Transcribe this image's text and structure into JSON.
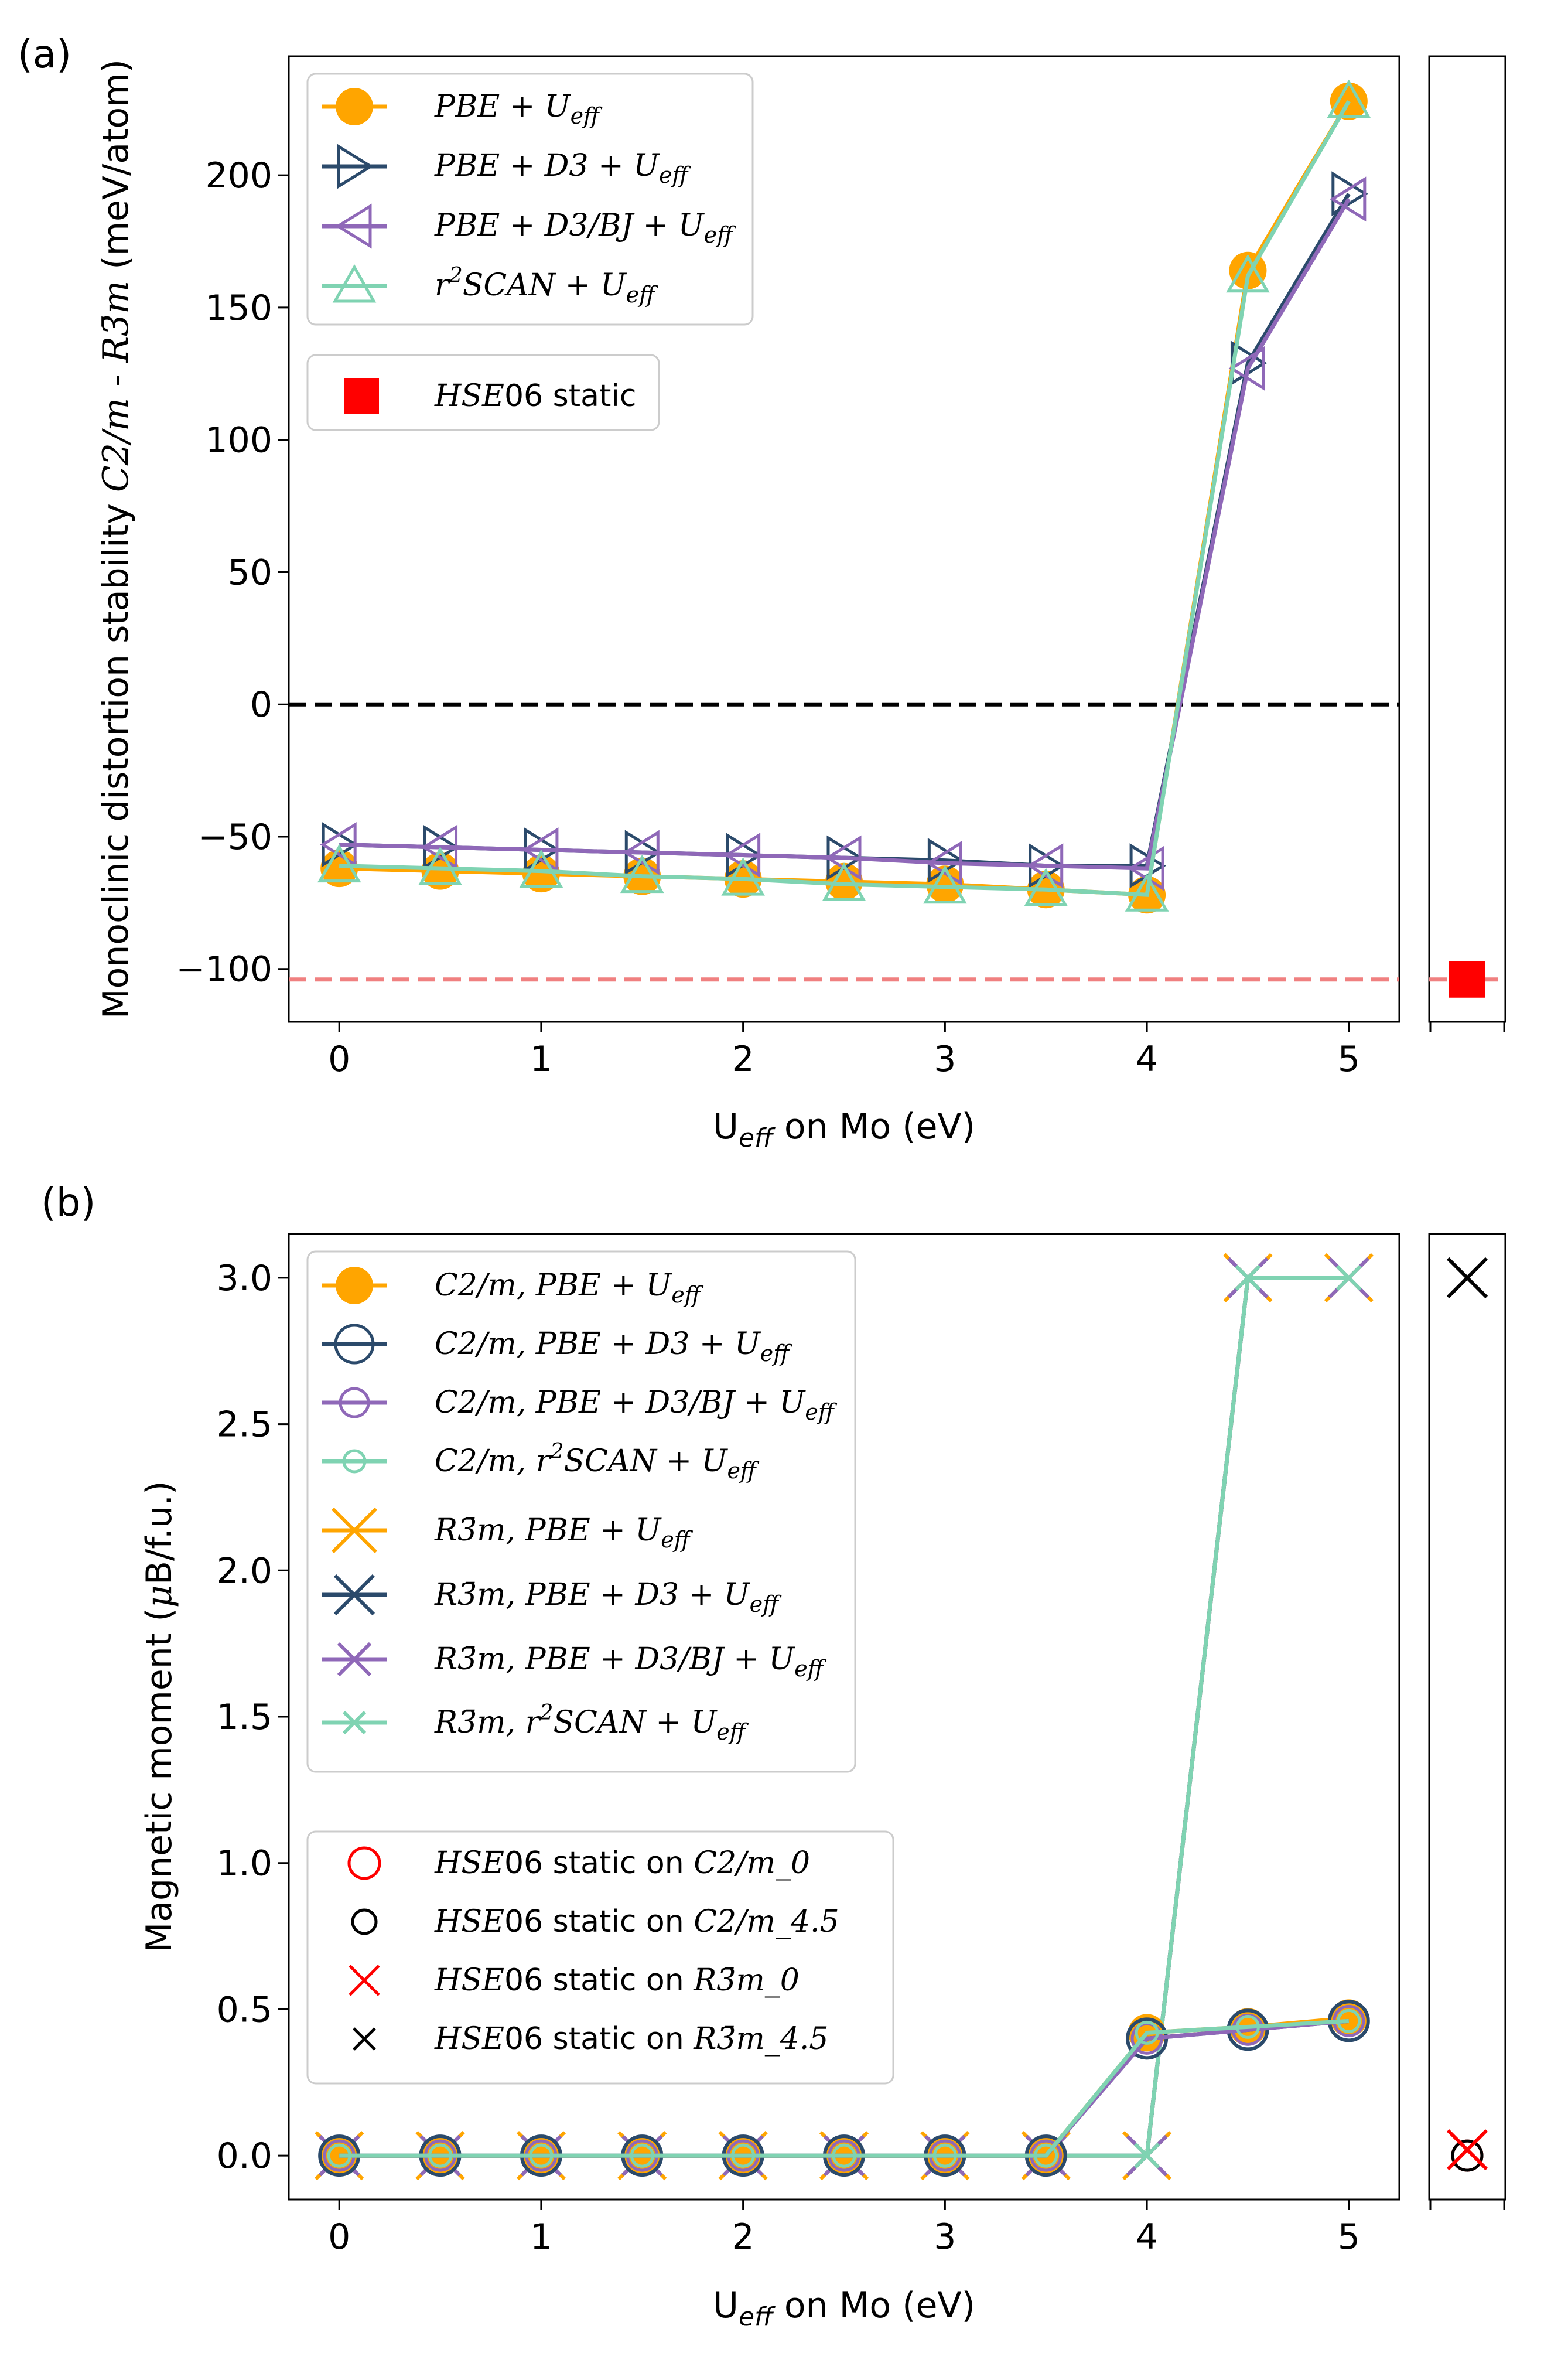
{
  "panel_labels": [
    "(a)",
    "(b)"
  ],
  "colors": {
    "PBE": "#ffa500",
    "PBE_D3": "#2b4a6b",
    "PBE_D3BJ": "#8f68b8",
    "r2SCAN": "#7fd3b2",
    "HSE_a": "#ff0000",
    "ref_a": "#f08080",
    "HSE_b_red": "#ff0000",
    "HSE_b_black": "#000000"
  },
  "chart_data": [
    {
      "type": "line",
      "panel": "(a)",
      "xlabel": "U_eff on Mo (eV)",
      "ylabel": "Monoclinic distortion stability C2/m - R3m (meV/atom)",
      "xlim": [
        -0.25,
        5.25
      ],
      "ylim": [
        -120,
        245
      ],
      "xticks": [
        "0",
        "1",
        "2",
        "3",
        "4",
        "5"
      ],
      "yticks": [
        "200",
        "150",
        "100",
        "50",
        "0",
        "−50",
        "−100"
      ],
      "x": [
        0,
        0.5,
        1,
        1.5,
        2,
        2.5,
        3,
        3.5,
        4,
        4.5,
        5
      ],
      "series": [
        {
          "name": "PBE + U_eff",
          "marker": "filled-circle",
          "values": [
            -62,
            -63,
            -64,
            -65,
            -66,
            -67,
            -68,
            -70,
            -72,
            164,
            228
          ]
        },
        {
          "name": "PBE + D3 + U_eff",
          "marker": "triangle-right",
          "values": [
            -53,
            -54,
            -55,
            -56,
            -57,
            -58,
            -59,
            -61,
            -61,
            129,
            193
          ]
        },
        {
          "name": "PBE + D3/BJ + U_eff",
          "marker": "triangle-left",
          "values": [
            -53,
            -54,
            -55,
            -56,
            -57,
            -58,
            -60,
            -61,
            -62,
            127,
            191
          ]
        },
        {
          "name": "r2SCAN + U_eff",
          "marker": "triangle-up",
          "values": [
            -61,
            -62,
            -63,
            -65,
            -66,
            -68,
            -69,
            -70,
            -72,
            162,
            228
          ]
        }
      ],
      "reference_lines": [
        {
          "y": 0,
          "style": "dashed",
          "color": "#000000"
        },
        {
          "y": -104,
          "style": "dashed",
          "color": "#f08080"
        }
      ],
      "side_panel": {
        "series": "HSE06 static",
        "marker": "filled-square",
        "value": -104
      },
      "legend": [
        "PBE + U_eff",
        "PBE + D3 + U_eff",
        "PBE + D3/BJ + U_eff",
        "r2SCAN + U_eff"
      ],
      "legend2": [
        "HSE06 static"
      ],
      "legend_position": "upper-left"
    },
    {
      "type": "line",
      "panel": "(b)",
      "xlabel": "U_eff on Mo (eV)",
      "ylabel": "Magnetic moment (μB/f.u.)",
      "xlim": [
        -0.25,
        5.25
      ],
      "ylim": [
        -0.15,
        3.15
      ],
      "xticks": [
        "0",
        "1",
        "2",
        "3",
        "4",
        "5"
      ],
      "yticks": [
        "3.0",
        "2.5",
        "2.0",
        "1.5",
        "1.0",
        "0.5",
        "0.0"
      ],
      "x": [
        0,
        0.5,
        1,
        1.5,
        2,
        2.5,
        3,
        3.5,
        4,
        4.5,
        5
      ],
      "series": [
        {
          "name": "C2/m, PBE + U_eff",
          "marker": "filled-circle",
          "values": [
            0,
            0,
            0,
            0,
            0,
            0,
            0,
            0,
            0.42,
            0.44,
            0.47
          ]
        },
        {
          "name": "C2/m, PBE + D3 + U_eff",
          "marker": "open-circle-large",
          "values": [
            0,
            0,
            0,
            0,
            0,
            0,
            0,
            0,
            0.4,
            0.43,
            0.46
          ]
        },
        {
          "name": "C2/m, PBE + D3/BJ + U_eff",
          "marker": "open-circle",
          "values": [
            0,
            0,
            0,
            0,
            0,
            0,
            0,
            0,
            0.4,
            0.43,
            0.46
          ]
        },
        {
          "name": "C2/m, r2SCAN + U_eff",
          "marker": "open-circle-small",
          "values": [
            0,
            0,
            0,
            0,
            0,
            0,
            0,
            0,
            0.42,
            0.44,
            0.46
          ]
        },
        {
          "name": "R3m, PBE + U_eff",
          "marker": "x-large",
          "values": [
            0,
            0,
            0,
            0,
            0,
            0,
            0,
            0,
            0,
            3.0,
            3.0
          ]
        },
        {
          "name": "R3m, PBE + D3 + U_eff",
          "marker": "x",
          "values": [
            0,
            0,
            0,
            0,
            0,
            0,
            0,
            0,
            0,
            3.0,
            3.0
          ]
        },
        {
          "name": "R3m, PBE + D3/BJ + U_eff",
          "marker": "x",
          "values": [
            0,
            0,
            0,
            0,
            0,
            0,
            0,
            0,
            0,
            3.0,
            3.0
          ]
        },
        {
          "name": "R3m, r2SCAN + U_eff",
          "marker": "x-small",
          "values": [
            0,
            0,
            0,
            0,
            0,
            0,
            0,
            0,
            0,
            3.0,
            3.0
          ]
        }
      ],
      "side_panel": [
        {
          "name": "HSE06 static on C2/m_0",
          "marker": "open-circle",
          "color": "#ff0000",
          "value": 0.0
        },
        {
          "name": "HSE06 static on C2/m_4.5",
          "marker": "open-circle",
          "color": "#000000",
          "value": 0.0
        },
        {
          "name": "HSE06 static on R3m_0",
          "marker": "x",
          "color": "#ff0000",
          "value": 0.02
        },
        {
          "name": "HSE06 static on R3m_4.5",
          "marker": "x",
          "color": "#000000",
          "value": 3.0
        }
      ],
      "legend_position": "upper-left"
    }
  ]
}
